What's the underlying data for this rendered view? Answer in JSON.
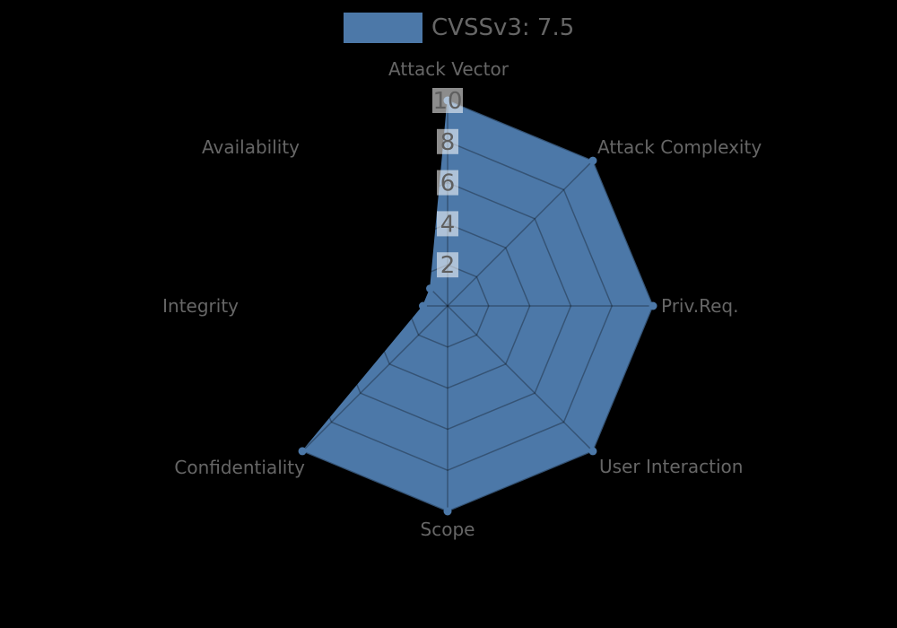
{
  "legend": {
    "label": "CVSSv3: 7.5",
    "swatch_color": "#4c78a8"
  },
  "chart_data": {
    "type": "radar",
    "categories": [
      "Attack Vector",
      "Attack Complexity",
      "Priv.Req.",
      "User Interaction",
      "Scope",
      "Confidentiality",
      "Integrity",
      "Availability"
    ],
    "series": [
      {
        "name": "CVSSv3: 7.5",
        "values": [
          10,
          10,
          10,
          10,
          10,
          10,
          1.2,
          1.2
        ]
      }
    ],
    "rmax": 10,
    "ticks": [
      2,
      4,
      6,
      8,
      10
    ],
    "fill_color": "#4c78a8",
    "background": "#000000",
    "grid": true,
    "grid_color": "rgba(0,0,0,0.3)",
    "axis_label_color": "#666666",
    "tick_label_color": "#5f5f5f",
    "tick_label_bg": "rgba(255,255,255,0.55)",
    "legend_position": "top"
  }
}
